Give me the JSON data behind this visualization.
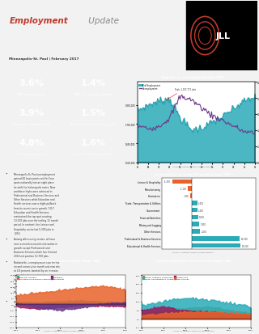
{
  "stats": [
    {
      "value": "3.6%",
      "label": "MSP unemployment",
      "bg": "#E8622A"
    },
    {
      "value": "1.4%",
      "label": "MSP 12-month job growth",
      "bg": "#8B7B3A"
    },
    {
      "value": "3.9%",
      "label": "Minnesota unemployment",
      "bg": "#2AABB8"
    },
    {
      "value": "1.5%",
      "label": "Minnesota 12-month job growth",
      "bg": "#9B1A5A"
    },
    {
      "value": "4.8%",
      "label": "U.S. unemployment",
      "bg": "#6B3A8B"
    },
    {
      "value": "1.6%",
      "label": "U.S. 13-month job growth",
      "bg": "#7B6B9B"
    }
  ],
  "bullet_points": [
    "Minneapolis-St. Paul unemployment gained 60 basis points and fell four spots nationally into an eight place tie with the Indianapolis metro. New workforce highs were achieved in Professional and Business Services and Other Services while Education and Health services saw a slight pullback from its recent run in growth. Y-O-Y Education and Health Services maintained the top spot creating 13,000 jobs over the trailing 12 month period. In contrast, the Leisure and Hospitality sector lost 5,300 jobs in 2016.",
    "Among office using sectors, all have seen a month-to-month contraction in growth except Professional and Business Services which has finished 2016 net positive 12,700 jobs.",
    "Nationwide, unemployment rose for the second consecutive month and now sits at 4.8 percent, boosted by an increase in the labor force participation rate to 62.9 percent. However, the expansion of the civilian labor force is not keeping up with job growth, which will keep slack minimal in the near-term.",
    "Wage growth continues but at a slower pace than December."
  ],
  "bar_labels": [
    "Educational & Health Services",
    "Professional & Business Services",
    "Other Services",
    "Mining and Logging",
    "Financial Activities",
    "Government",
    "Trade, Transportation & Utilities",
    "Information",
    "Manufacturing",
    "Leisure & Hospitality"
  ],
  "bar_values": [
    13000,
    12700,
    2200,
    1900,
    1600,
    1400,
    1400,
    -400,
    -1100,
    -5300
  ],
  "bar_colors": [
    "#2AABB8",
    "#2AABB8",
    "#2AABB8",
    "#2AABB8",
    "#2AABB8",
    "#2AABB8",
    "#2AABB8",
    "#E8622A",
    "#E8622A",
    "#E8622A"
  ],
  "emp_years": [
    2005,
    2006,
    2007,
    2008,
    2009,
    2010,
    2011,
    2012,
    2013,
    2014,
    2015,
    2016
  ],
  "emp_vals": [
    1820000,
    1850000,
    1870000,
    1880000,
    1780000,
    1720000,
    1730000,
    1760000,
    1790000,
    1830000,
    1870000,
    1890000
  ],
  "unemp_vals": [
    4.5,
    4.2,
    4.5,
    5.5,
    8.2,
    7.8,
    6.8,
    5.8,
    5.2,
    4.5,
    3.8,
    3.6
  ],
  "emp_fill": "#2AABB8",
  "unemp_line": "#6B3A8B",
  "office_fin": [
    2.0,
    1.5,
    2.5,
    3.0,
    2.0,
    1.5
  ],
  "office_pbs": [
    8.0,
    10.0,
    12.0,
    14.0,
    16.0,
    12.7
  ],
  "office_info": [
    -2.0,
    -4.0,
    -2.5,
    -1.0,
    -1.5,
    -2.0
  ],
  "office_govt": [
    1.0,
    -3.0,
    -5.0,
    -3.0,
    0.5,
    1.5
  ],
  "office_years": [
    2011,
    2012,
    2013,
    2014,
    2015,
    2016
  ],
  "ind_mining": [
    3.0,
    5.0,
    6.0,
    7.0,
    5.0,
    3.0
  ],
  "ind_trade": [
    8.0,
    10.0,
    12.0,
    11.0,
    9.0,
    7.0
  ],
  "ind_mfg": [
    5.0,
    7.0,
    5.0,
    4.0,
    3.0,
    2.0
  ],
  "ind_other": [
    2.0,
    3.0,
    4.0,
    4.0,
    3.5,
    3.0
  ],
  "ind_years": [
    2011,
    2012,
    2013,
    2014,
    2015,
    2016
  ],
  "col_fin": "#2AABB8",
  "col_pbs": "#E8622A",
  "col_info": "#9B1A5A",
  "col_govt": "#6B3A8B",
  "col_mining": "#8B9B3A",
  "col_trade": "#2AABB8",
  "col_mfg": "#9B1A5A",
  "col_other": "#E8622A",
  "bg": "#F2F2F2",
  "title_gray": "#9B9B9B",
  "source_text": "Source: JLL Research, Bureau of Labor Statistics"
}
